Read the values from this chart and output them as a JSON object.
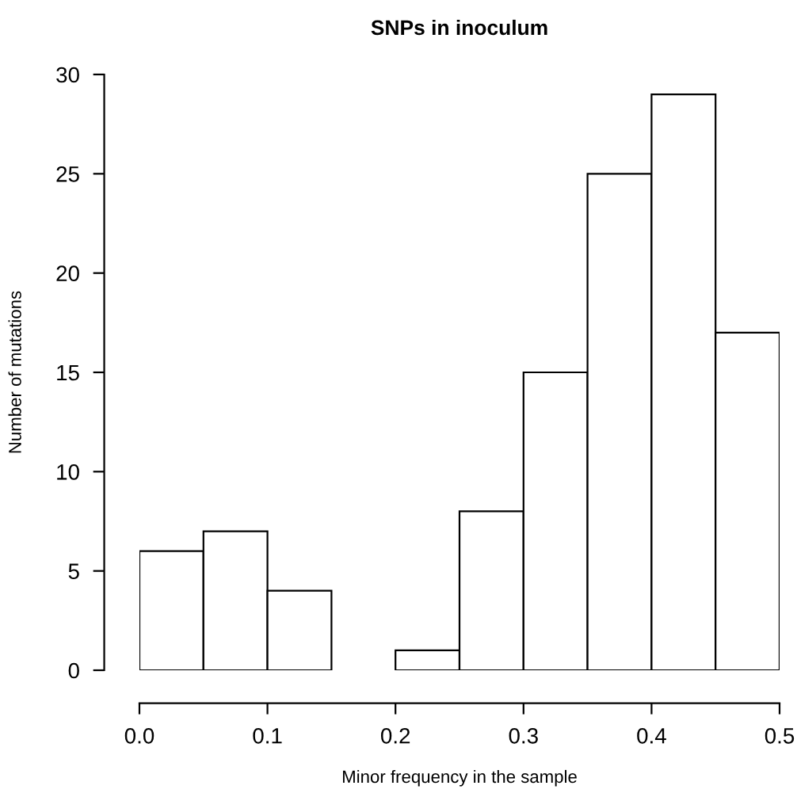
{
  "chart_data": {
    "type": "histogram",
    "title": "SNPs in inoculum",
    "xlabel": "Minor frequency in the sample",
    "ylabel": "Number of mutations",
    "bins": [
      0,
      0.05,
      0.1,
      0.15,
      0.2,
      0.25,
      0.3,
      0.35,
      0.4,
      0.45,
      0.5
    ],
    "values": [
      6,
      7,
      4,
      0,
      1,
      8,
      15,
      25,
      29,
      17
    ],
    "color": "#ffffff",
    "xlim": [
      0,
      0.5
    ],
    "ylim": [
      0,
      30
    ],
    "xticks": [
      {
        "value": 0,
        "label": "0.0"
      },
      0.1,
      0.2,
      0.3,
      0.4,
      0.5
    ],
    "yticks": [
      0,
      5,
      10,
      15,
      20,
      25,
      30
    ],
    "grid": false
  }
}
